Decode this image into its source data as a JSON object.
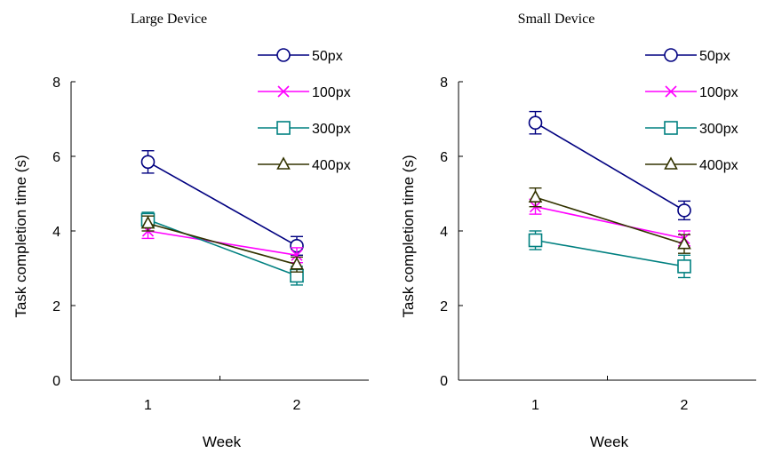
{
  "chart_data": [
    {
      "type": "line",
      "title": "Large Device",
      "xlabel": "Week",
      "ylabel": "Task completion time (s)",
      "ylim": [
        0,
        8
      ],
      "yticks": [
        "0",
        "2",
        "4",
        "6",
        "8"
      ],
      "categories": [
        "1",
        "2"
      ],
      "legend_position": "top-right",
      "series": [
        {
          "name": "50px",
          "values": [
            5.85,
            3.6
          ],
          "errors": [
            0.3,
            0.25
          ],
          "color": "#000080",
          "marker": "circle"
        },
        {
          "name": "100px",
          "values": [
            4.0,
            3.35
          ],
          "errors": [
            0.2,
            0.2
          ],
          "color": "#FF00FF",
          "marker": "x"
        },
        {
          "name": "300px",
          "values": [
            4.3,
            2.8
          ],
          "errors": [
            0.2,
            0.25
          ],
          "color": "#008080",
          "marker": "square"
        },
        {
          "name": "400px",
          "values": [
            4.2,
            3.1
          ],
          "errors": [
            0.2,
            0.2
          ],
          "color": "#333300",
          "marker": "triangle"
        }
      ]
    },
    {
      "type": "line",
      "title": "Small Device",
      "xlabel": "Week",
      "ylabel": "Task completion time (s)",
      "ylim": [
        0,
        8
      ],
      "yticks": [
        "0",
        "2",
        "4",
        "6",
        "8"
      ],
      "categories": [
        "1",
        "2"
      ],
      "legend_position": "top-right",
      "series": [
        {
          "name": "50px",
          "values": [
            6.9,
            4.55
          ],
          "errors": [
            0.3,
            0.25
          ],
          "color": "#000080",
          "marker": "circle"
        },
        {
          "name": "100px",
          "values": [
            4.65,
            3.8
          ],
          "errors": [
            0.2,
            0.2
          ],
          "color": "#FF00FF",
          "marker": "x"
        },
        {
          "name": "300px",
          "values": [
            3.75,
            3.05
          ],
          "errors": [
            0.25,
            0.3
          ],
          "color": "#008080",
          "marker": "square"
        },
        {
          "name": "400px",
          "values": [
            4.9,
            3.65
          ],
          "errors": [
            0.25,
            0.25
          ],
          "color": "#333300",
          "marker": "triangle"
        }
      ]
    }
  ]
}
